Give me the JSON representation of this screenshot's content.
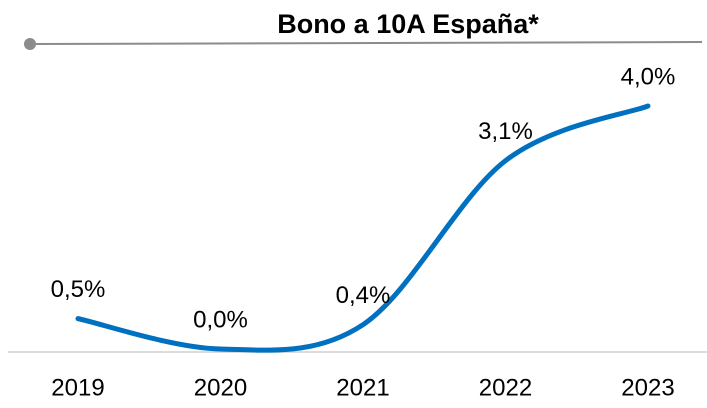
{
  "chart_data": {
    "type": "line",
    "title": "Bono a 10A España*",
    "categories": [
      "2019",
      "2020",
      "2021",
      "2022",
      "2023"
    ],
    "values": [
      0.5,
      0.0,
      0.4,
      3.1,
      4.0
    ],
    "value_labels": [
      "0,5%",
      "0,0%",
      "0,4%",
      "3,1%",
      "4,0%"
    ],
    "color": "#0070c0"
  }
}
